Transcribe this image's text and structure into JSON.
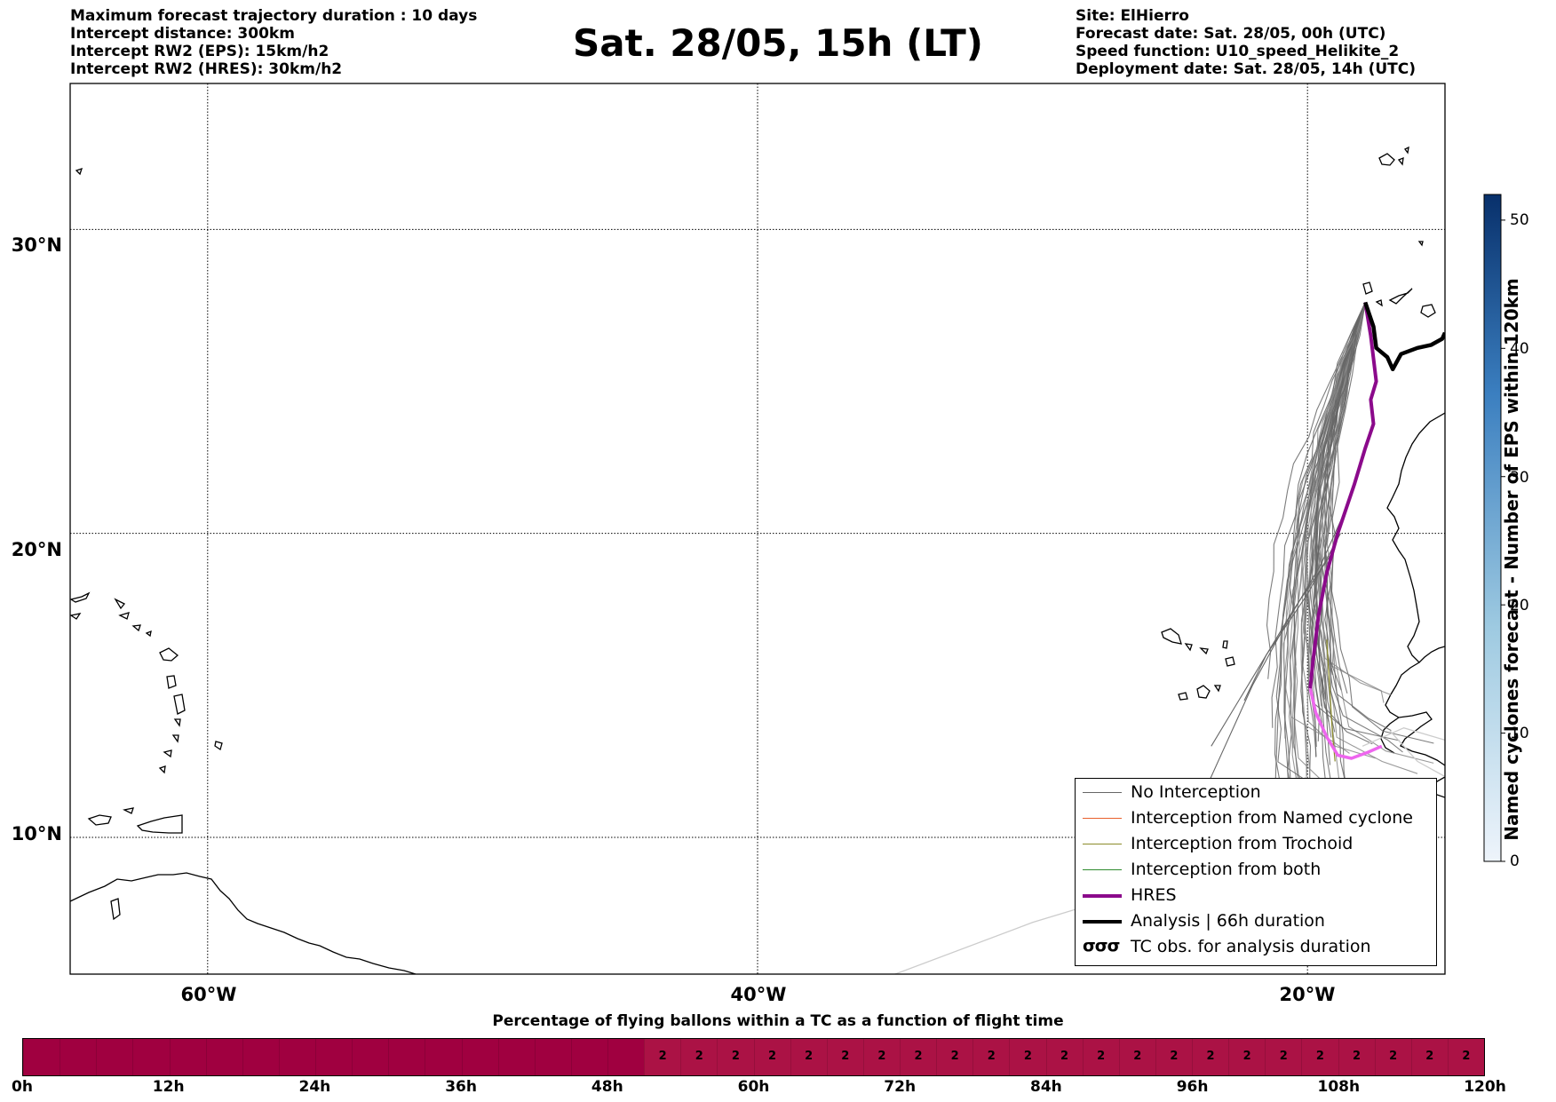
{
  "header_left": [
    "Maximum forecast trajectory duration : 10 days",
    "Intercept distance: 300km",
    "Intercept RW2 (EPS):  15km/h2",
    "Intercept RW2 (HRES): 30km/h2"
  ],
  "header_right": [
    "Site: ElHierro",
    "Forecast date: Sat. 28/05, 00h (UTC)",
    "Speed function: U10_speed_Helikite_2",
    "Deployment date: Sat. 28/05, 14h (UTC)"
  ],
  "title": "Sat. 28/05, 15h (LT)",
  "map": {
    "lat_labels": [
      "30°N",
      "20°N",
      "10°N"
    ],
    "lon_labels": [
      "60°W",
      "40°W",
      "20°W"
    ],
    "lat_lines": [
      30,
      20,
      10
    ],
    "lon_lines": [
      -60,
      -40,
      -20
    ],
    "extent": {
      "lon_min": -65,
      "lon_max": -15,
      "lat_min": 5.5,
      "lat_max": 34.8
    },
    "colors": {
      "no_interception": "#666666",
      "named": "#e8602c",
      "trochoid": "#8c8c2a",
      "both": "#2e8b2e",
      "hres": "#8b0a8b",
      "hres_light": "#ee66ee",
      "analysis": "#000000",
      "faint": "#cccccc"
    },
    "hres_track": [
      [
        -17.9,
        27.6
      ],
      [
        -17.7,
        26.5
      ],
      [
        -17.5,
        25.0
      ],
      [
        -17.7,
        24.4
      ],
      [
        -17.6,
        23.6
      ],
      [
        -17.9,
        22.8
      ],
      [
        -18.3,
        21.6
      ],
      [
        -18.9,
        20.0
      ],
      [
        -19.3,
        18.7
      ],
      [
        -19.6,
        17.3
      ],
      [
        -19.8,
        15.8
      ],
      [
        -19.9,
        14.9
      ]
    ],
    "hres_late": [
      [
        -19.9,
        14.9
      ],
      [
        -19.7,
        14.1
      ],
      [
        -19.3,
        13.3
      ],
      [
        -18.9,
        12.7
      ],
      [
        -18.4,
        12.6
      ],
      [
        -17.8,
        12.8
      ],
      [
        -17.3,
        13.0
      ]
    ],
    "analysis_track": [
      [
        -17.9,
        27.6
      ],
      [
        -17.6,
        26.8
      ],
      [
        -17.5,
        26.1
      ],
      [
        -17.1,
        25.8
      ],
      [
        -16.9,
        25.4
      ],
      [
        -16.6,
        25.9
      ],
      [
        -16.0,
        26.1
      ],
      [
        -15.5,
        26.2
      ],
      [
        -15.1,
        26.4
      ],
      [
        -15.0,
        26.6
      ]
    ]
  },
  "legend": [
    {
      "label": "No Interception",
      "style": "thin",
      "color": "#666666"
    },
    {
      "label": "Interception from Named cyclone",
      "style": "thin",
      "color": "#e8602c"
    },
    {
      "label": "Interception from Trochoid",
      "style": "thin",
      "color": "#8c8c2a"
    },
    {
      "label": "Interception from both",
      "style": "thin",
      "color": "#2e8b2e"
    },
    {
      "label": "HRES",
      "style": "thick",
      "color": "#8b0a8b"
    },
    {
      "label": "Analysis | 66h duration",
      "style": "thick",
      "color": "#000000"
    },
    {
      "label": "TC obs. for analysis duration",
      "style": "symbol",
      "color": "#000000",
      "symbol": "σσσ"
    }
  ],
  "colorbar": {
    "label": "Named cyclones forecast - Number of EPS within 120km",
    "ticks": [
      0,
      10,
      20,
      30,
      40,
      50
    ],
    "vmin": 0,
    "vmax": 52,
    "color_low": "#e8f0fa",
    "color_high": "#08306b"
  },
  "strip": {
    "title": "Percentage of flying ballons within a TC as a function of flight time",
    "tick_labels": [
      "0h",
      "12h",
      "24h",
      "36h",
      "48h",
      "60h",
      "72h",
      "84h",
      "96h",
      "108h",
      "120h"
    ],
    "hours_max": 120,
    "segment_hours": 3,
    "values": [
      0,
      0,
      0,
      0,
      0,
      0,
      0,
      0,
      0,
      0,
      0,
      0,
      0,
      0,
      0,
      0,
      0,
      2,
      2,
      2,
      2,
      2,
      2,
      2,
      2,
      2,
      2,
      2,
      2,
      2,
      2,
      2,
      2,
      2,
      2,
      2,
      2,
      2,
      2,
      2,
      2
    ],
    "color_zero": "#a00040",
    "color_nonzero": "#ab1245"
  }
}
